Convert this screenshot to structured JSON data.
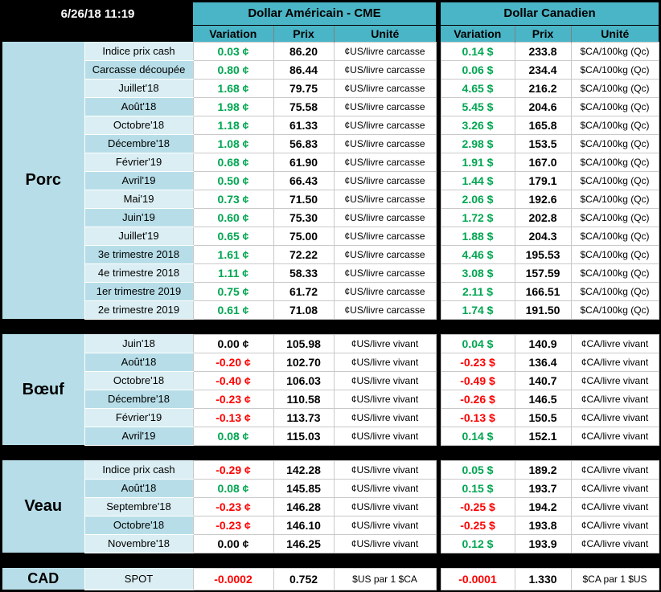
{
  "header": {
    "datetime": "6/26/18 11:19",
    "usd_title": "Dollar Américain - CME",
    "cad_title": "Dollar Canadien",
    "subheaders": [
      "Variation",
      "Prix",
      "Unité"
    ]
  },
  "colors": {
    "header_teal": "#4AB5C6",
    "section_blue": "#B7DEE8",
    "row_light": "#DAEEF3",
    "row_medium": "#B7DEE8",
    "positive_green": "#00A651",
    "negative_red": "#FF0000",
    "frame_black": "#000000"
  },
  "sections": [
    {
      "id": "porc",
      "name": "Porc",
      "usd_unit": "¢US/livre carcasse",
      "cad_unit": "$CA/100kg (Qc)",
      "rows": [
        {
          "label": "Indice prix cash",
          "usd_var": "0.03 ¢",
          "usd_prix": "86.20",
          "cad_var": "0.14 $",
          "cad_prix": "233.8"
        },
        {
          "label": "Carcasse découpée",
          "usd_var": "0.80 ¢",
          "usd_prix": "86.44",
          "cad_var": "0.06 $",
          "cad_prix": "234.4"
        },
        {
          "label": "Juillet'18",
          "usd_var": "1.68 ¢",
          "usd_prix": "79.75",
          "cad_var": "4.65 $",
          "cad_prix": "216.2"
        },
        {
          "label": "Août'18",
          "usd_var": "1.98 ¢",
          "usd_prix": "75.58",
          "cad_var": "5.45 $",
          "cad_prix": "204.6"
        },
        {
          "label": "Octobre'18",
          "usd_var": "1.18 ¢",
          "usd_prix": "61.33",
          "cad_var": "3.26 $",
          "cad_prix": "165.8"
        },
        {
          "label": "Décembre'18",
          "usd_var": "1.08 ¢",
          "usd_prix": "56.83",
          "cad_var": "2.98 $",
          "cad_prix": "153.5"
        },
        {
          "label": "Février'19",
          "usd_var": "0.68 ¢",
          "usd_prix": "61.90",
          "cad_var": "1.91 $",
          "cad_prix": "167.0"
        },
        {
          "label": "Avril'19",
          "usd_var": "0.50 ¢",
          "usd_prix": "66.43",
          "cad_var": "1.44 $",
          "cad_prix": "179.1"
        },
        {
          "label": "Mai'19",
          "usd_var": "0.73 ¢",
          "usd_prix": "71.50",
          "cad_var": "2.06 $",
          "cad_prix": "192.6"
        },
        {
          "label": "Juin'19",
          "usd_var": "0.60 ¢",
          "usd_prix": "75.30",
          "cad_var": "1.72 $",
          "cad_prix": "202.8"
        },
        {
          "label": "Juillet'19",
          "usd_var": "0.65 ¢",
          "usd_prix": "75.00",
          "cad_var": "1.88 $",
          "cad_prix": "204.3"
        },
        {
          "label": "3e trimestre 2018",
          "usd_var": "1.61 ¢",
          "usd_prix": "72.22",
          "cad_var": "4.46 $",
          "cad_prix": "195.53"
        },
        {
          "label": "4e trimestre 2018",
          "usd_var": "1.11 ¢",
          "usd_prix": "58.33",
          "cad_var": "3.08 $",
          "cad_prix": "157.59"
        },
        {
          "label": "1er trimestre 2019",
          "usd_var": "0.75 ¢",
          "usd_prix": "61.72",
          "cad_var": "2.11 $",
          "cad_prix": "166.51"
        },
        {
          "label": "2e trimestre 2019",
          "usd_var": "0.61 ¢",
          "usd_prix": "71.08",
          "cad_var": "1.74 $",
          "cad_prix": "191.50"
        }
      ]
    },
    {
      "id": "boeuf",
      "name": "Bœuf",
      "usd_unit": "¢US/livre vivant",
      "cad_unit": "¢CA/livre vivant",
      "rows": [
        {
          "label": "Juin'18",
          "usd_var": "0.00 ¢",
          "usd_prix": "105.98",
          "cad_var": "0.04 $",
          "cad_prix": "140.9"
        },
        {
          "label": "Août'18",
          "usd_var": "-0.20 ¢",
          "usd_prix": "102.70",
          "cad_var": "-0.23 $",
          "cad_prix": "136.4"
        },
        {
          "label": "Octobre'18",
          "usd_var": "-0.40 ¢",
          "usd_prix": "106.03",
          "cad_var": "-0.49 $",
          "cad_prix": "140.7"
        },
        {
          "label": "Décembre'18",
          "usd_var": "-0.23 ¢",
          "usd_prix": "110.58",
          "cad_var": "-0.26 $",
          "cad_prix": "146.5"
        },
        {
          "label": "Février'19",
          "usd_var": "-0.13 ¢",
          "usd_prix": "113.73",
          "cad_var": "-0.13 $",
          "cad_prix": "150.5"
        },
        {
          "label": "Avril'19",
          "usd_var": "0.08 ¢",
          "usd_prix": "115.03",
          "cad_var": "0.14 $",
          "cad_prix": "152.1"
        }
      ]
    },
    {
      "id": "veau",
      "name": "Veau",
      "usd_unit": "¢US/livre vivant",
      "cad_unit": "¢CA/livre vivant",
      "rows": [
        {
          "label": "Indice prix cash",
          "usd_var": "-0.29 ¢",
          "usd_prix": "142.28",
          "cad_var": "0.05 $",
          "cad_prix": "189.2"
        },
        {
          "label": "Août'18",
          "usd_var": "0.08 ¢",
          "usd_prix": "145.85",
          "cad_var": "0.15 $",
          "cad_prix": "193.7"
        },
        {
          "label": "Septembre'18",
          "usd_var": "-0.23 ¢",
          "usd_prix": "146.28",
          "cad_var": "-0.25 $",
          "cad_prix": "194.2"
        },
        {
          "label": "Octobre'18",
          "usd_var": "-0.23 ¢",
          "usd_prix": "146.10",
          "cad_var": "-0.25 $",
          "cad_prix": "193.8"
        },
        {
          "label": "Novembre'18",
          "usd_var": "0.00 ¢",
          "usd_prix": "146.25",
          "cad_var": "0.12 $",
          "cad_prix": "193.9"
        }
      ]
    },
    {
      "id": "cad",
      "name": "CAD",
      "usd_unit": "$US par 1 $CA",
      "cad_unit": "$CA par 1 $US",
      "rows": [
        {
          "label": "SPOT",
          "usd_var": "-0.0002",
          "usd_prix": "0.752",
          "cad_var": "-0.0001",
          "cad_prix": "1.330"
        }
      ]
    }
  ]
}
